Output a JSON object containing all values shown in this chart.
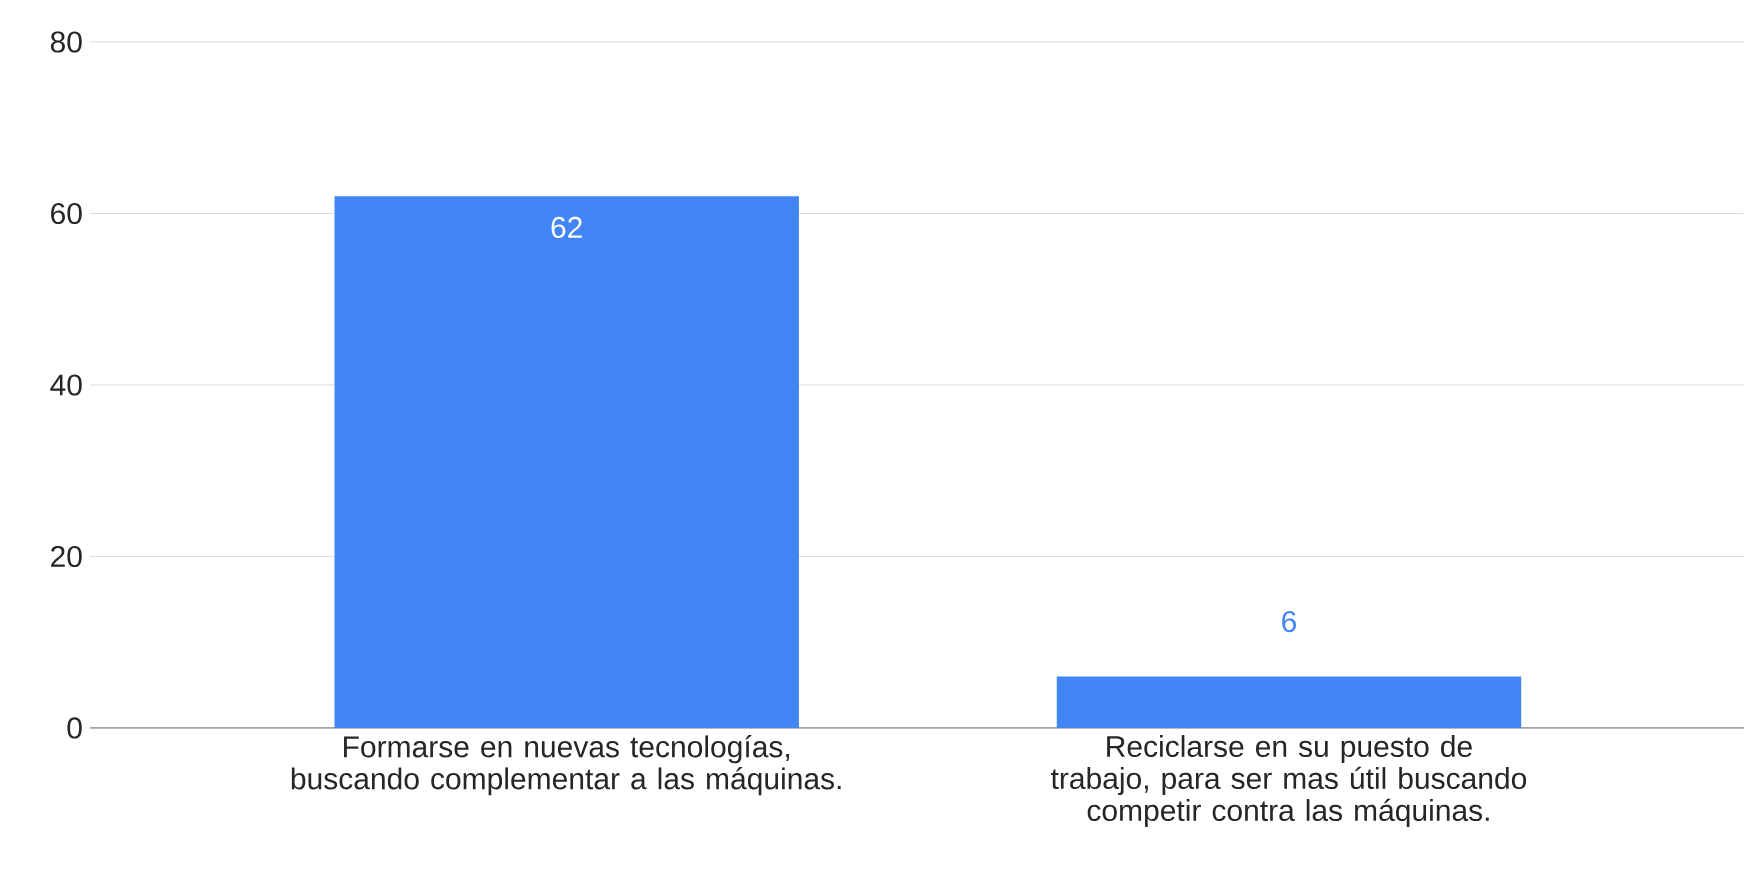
{
  "chart_data": {
    "type": "bar",
    "categories": [
      "Formarse en nuevas tecnologías, buscando complementar a las máquinas.",
      "Reciclarse en su puesto de trabajo, para ser mas útil buscando competir contra las máquinas."
    ],
    "values": [
      62,
      6
    ],
    "color": "#4285f4",
    "ylim": [
      0,
      80
    ],
    "yticks": [
      0,
      20,
      40,
      60,
      80
    ],
    "grid": "y",
    "data_labels": true
  }
}
